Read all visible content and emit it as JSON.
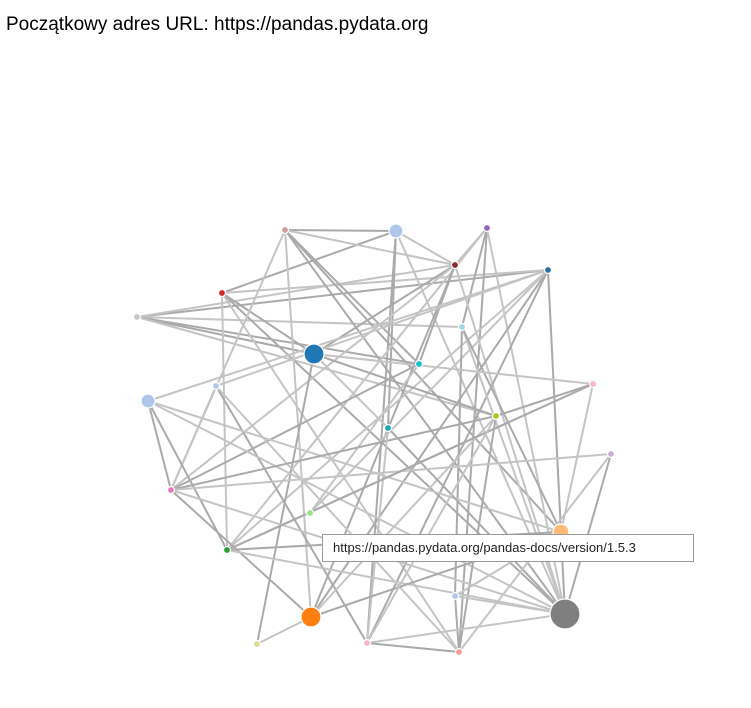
{
  "header": {
    "label": "Początkowy adres URL:",
    "url": "https://pandas.pydata.org"
  },
  "tooltip": {
    "url": "https://pandas.pydata.org/pandas-docs/version/1.5.3"
  },
  "graph": {
    "edge_colors": [
      "#aaaaaa",
      "#c4c4c4"
    ],
    "nodes": [
      {
        "id": 0,
        "color": "#d49a97"
      },
      {
        "id": 1,
        "color": "#aec7e8"
      },
      {
        "id": 2,
        "color": "#9467bd"
      },
      {
        "id": 3,
        "color": "#8c2d2d"
      },
      {
        "id": 4,
        "color": "#2a6ea8"
      },
      {
        "id": 5,
        "color": "#d62728"
      },
      {
        "id": 6,
        "color": "#c7c7c7"
      },
      {
        "id": 7,
        "color": "#9edae5"
      },
      {
        "id": 8,
        "color": "#1f77b4"
      },
      {
        "id": 9,
        "color": "#17becf"
      },
      {
        "id": 10,
        "color": "#aec7e8"
      },
      {
        "id": 11,
        "color": "#f7b6d2"
      },
      {
        "id": 12,
        "color": "#aec7e8"
      },
      {
        "id": 13,
        "color": "#bcbd22"
      },
      {
        "id": 14,
        "color": "#17a8b8"
      },
      {
        "id": 15,
        "color": "#c5b0d5"
      },
      {
        "id": 16,
        "color": "#e377c2"
      },
      {
        "id": 17,
        "color": "#98df8a"
      },
      {
        "id": 18,
        "color": "#ffbb78"
      },
      {
        "id": 19,
        "color": "#2ca02c"
      },
      {
        "id": 20,
        "color": "#aec7e8"
      },
      {
        "id": 21,
        "color": "#ff7f0e"
      },
      {
        "id": 22,
        "color": "#7f7f7f"
      },
      {
        "id": 23,
        "color": "#dbdb8d"
      },
      {
        "id": 24,
        "color": "#f7b6d2"
      },
      {
        "id": 25,
        "color": "#ff9896"
      }
    ],
    "edges": [
      [
        6,
        4
      ],
      [
        6,
        3
      ],
      [
        6,
        8
      ],
      [
        6,
        7
      ],
      [
        6,
        9
      ],
      [
        6,
        13
      ],
      [
        5,
        1
      ],
      [
        5,
        4
      ],
      [
        5,
        8
      ],
      [
        5,
        19
      ],
      [
        5,
        22
      ],
      [
        5,
        25
      ],
      [
        0,
        1
      ],
      [
        0,
        3
      ],
      [
        0,
        9
      ],
      [
        0,
        16
      ],
      [
        0,
        22
      ],
      [
        0,
        21
      ],
      [
        0,
        18
      ],
      [
        1,
        3
      ],
      [
        1,
        14
      ],
      [
        1,
        22
      ],
      [
        1,
        24
      ],
      [
        2,
        3
      ],
      [
        2,
        7
      ],
      [
        2,
        19
      ],
      [
        2,
        25
      ],
      [
        2,
        22
      ],
      [
        3,
        8
      ],
      [
        3,
        16
      ],
      [
        3,
        21
      ],
      [
        3,
        22
      ],
      [
        3,
        9
      ],
      [
        4,
        19
      ],
      [
        4,
        21
      ],
      [
        4,
        17
      ],
      [
        4,
        24
      ],
      [
        4,
        12
      ],
      [
        4,
        22
      ],
      [
        4,
        10
      ],
      [
        7,
        20
      ],
      [
        7,
        22
      ],
      [
        7,
        18
      ],
      [
        8,
        11
      ],
      [
        8,
        13
      ],
      [
        8,
        14
      ],
      [
        8,
        23
      ],
      [
        9,
        17
      ],
      [
        9,
        16
      ],
      [
        10,
        16
      ],
      [
        10,
        24
      ],
      [
        10,
        25
      ],
      [
        11,
        13
      ],
      [
        11,
        18
      ],
      [
        11,
        19
      ],
      [
        12,
        18
      ],
      [
        12,
        19
      ],
      [
        12,
        22
      ],
      [
        13,
        25
      ],
      [
        13,
        21
      ],
      [
        13,
        16
      ],
      [
        14,
        24
      ],
      [
        14,
        22
      ],
      [
        15,
        16
      ],
      [
        15,
        22
      ],
      [
        15,
        25
      ],
      [
        16,
        21
      ],
      [
        16,
        22
      ],
      [
        16,
        12
      ],
      [
        18,
        20
      ],
      [
        18,
        19
      ],
      [
        19,
        22
      ],
      [
        19,
        11
      ],
      [
        20,
        22
      ],
      [
        20,
        25
      ],
      [
        21,
        23
      ],
      [
        21,
        18
      ],
      [
        22,
        24
      ],
      [
        24,
        25
      ],
      [
        24,
        13
      ]
    ]
  }
}
